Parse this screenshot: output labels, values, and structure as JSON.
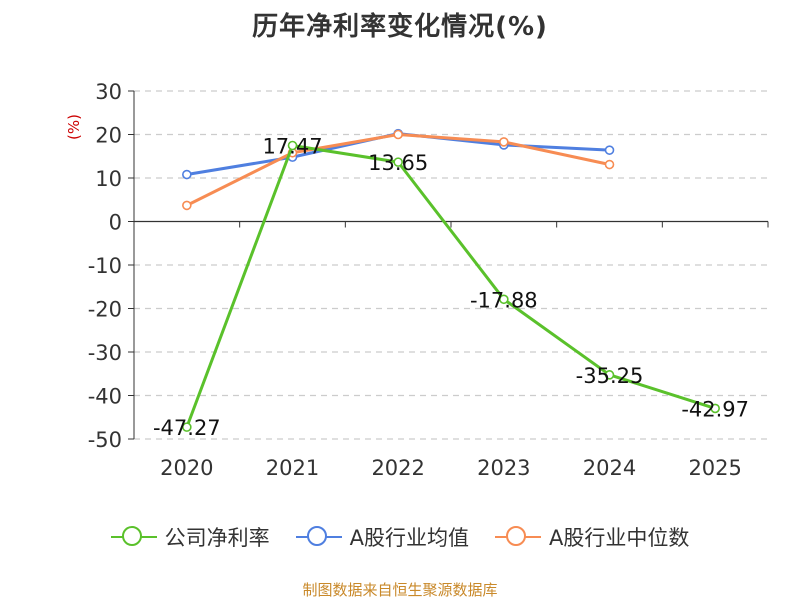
{
  "chart_data": {
    "type": "line",
    "title": "历年净利率变化情况(%)",
    "ylabel": "(%)",
    "xlabel": "",
    "categories": [
      "2020",
      "2021",
      "2022",
      "2023",
      "2024",
      "2025"
    ],
    "ylim": [
      -50,
      30
    ],
    "yticks": [
      30,
      20,
      10,
      0,
      -10,
      -20,
      -30,
      -40,
      -50
    ],
    "series": [
      {
        "name": "公司净利率",
        "color": "#5ac12b",
        "values": [
          -47.27,
          17.47,
          13.65,
          -17.88,
          -35.25,
          -42.97
        ],
        "labels": [
          "-47.27",
          "17.47",
          "13.65",
          "-17.88",
          "-35.25",
          "-42.97"
        ]
      },
      {
        "name": "A股行业均值",
        "color": "#4f7fe0",
        "values": [
          10.8,
          14.8,
          20.2,
          17.6,
          16.4,
          null
        ]
      },
      {
        "name": "A股行业中位数",
        "color": "#f78c53",
        "values": [
          3.7,
          15.8,
          20.0,
          18.3,
          13.1,
          null
        ]
      }
    ]
  },
  "source": "制图数据来自恒生聚源数据库"
}
